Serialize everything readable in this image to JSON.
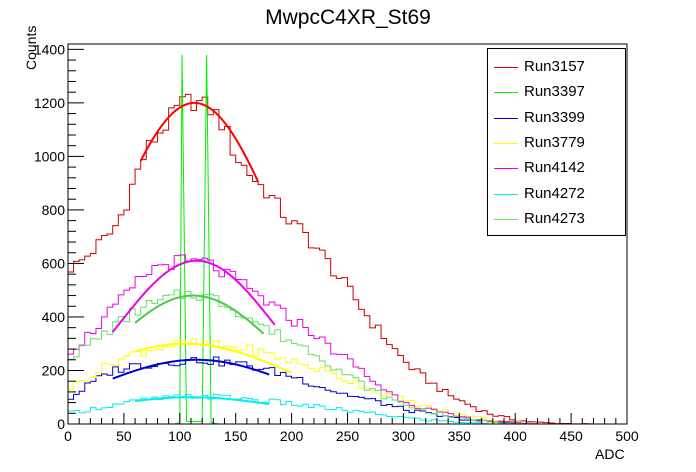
{
  "chart_data": {
    "type": "histogram",
    "title": "MwpcC4XR_St69",
    "xlabel": "ADC",
    "ylabel": "Counts",
    "xlim": [
      0,
      500
    ],
    "ylim": [
      0,
      1420
    ],
    "xticks": [
      0,
      50,
      100,
      150,
      200,
      250,
      300,
      350,
      400,
      450,
      500
    ],
    "yticks": [
      0,
      200,
      400,
      600,
      800,
      1000,
      1200,
      1400
    ],
    "bin_width": 5,
    "grid": false,
    "legend_position": "top-right",
    "series": [
      {
        "name": "Run3157",
        "color": "#cc0000",
        "fit_color": "#ff0000",
        "fit": {
          "mean": 113,
          "peak": 1200,
          "sigma": 76,
          "from": 65,
          "to": 170
        },
        "points": [
          [
            0,
            580
          ],
          [
            10,
            600
          ],
          [
            20,
            640
          ],
          [
            30,
            680
          ],
          [
            40,
            720
          ],
          [
            50,
            800
          ],
          [
            60,
            920
          ],
          [
            70,
            1020
          ],
          [
            80,
            1080
          ],
          [
            90,
            1130
          ],
          [
            100,
            1190
          ],
          [
            110,
            1210
          ],
          [
            120,
            1195
          ],
          [
            130,
            1170
          ],
          [
            140,
            1110
          ],
          [
            150,
            1000
          ],
          [
            160,
            950
          ],
          [
            170,
            900
          ],
          [
            180,
            860
          ],
          [
            190,
            800
          ],
          [
            200,
            750
          ],
          [
            210,
            720
          ],
          [
            220,
            670
          ],
          [
            230,
            620
          ],
          [
            240,
            560
          ],
          [
            250,
            510
          ],
          [
            260,
            450
          ],
          [
            270,
            390
          ],
          [
            280,
            340
          ],
          [
            290,
            290
          ],
          [
            300,
            240
          ],
          [
            310,
            200
          ],
          [
            320,
            170
          ],
          [
            330,
            140
          ],
          [
            340,
            110
          ],
          [
            350,
            90
          ],
          [
            360,
            70
          ],
          [
            370,
            50
          ],
          [
            380,
            35
          ],
          [
            390,
            25
          ],
          [
            400,
            15
          ],
          [
            410,
            10
          ],
          [
            420,
            6
          ],
          [
            440,
            2
          ],
          [
            470,
            0
          ]
        ]
      },
      {
        "name": "Run3397",
        "color": "#00ee00",
        "fit_color": "#00ee00",
        "points": [
          [
            0,
            0
          ],
          [
            95,
            0
          ],
          [
            100,
            5
          ],
          [
            102,
            1380
          ],
          [
            106,
            10
          ],
          [
            120,
            10
          ],
          [
            124,
            1380
          ],
          [
            128,
            5
          ],
          [
            135,
            0
          ],
          [
            500,
            0
          ]
        ]
      },
      {
        "name": "Run3399",
        "color": "#0000cc",
        "fit_color": "#0000cc",
        "fit": {
          "mean": 115,
          "peak": 240,
          "sigma": 90,
          "from": 40,
          "to": 180
        },
        "points": [
          [
            0,
            90
          ],
          [
            20,
            150
          ],
          [
            40,
            200
          ],
          [
            60,
            220
          ],
          [
            80,
            225
          ],
          [
            100,
            235
          ],
          [
            120,
            240
          ],
          [
            140,
            230
          ],
          [
            160,
            220
          ],
          [
            180,
            200
          ],
          [
            200,
            180
          ],
          [
            220,
            150
          ],
          [
            240,
            120
          ],
          [
            260,
            100
          ],
          [
            280,
            80
          ],
          [
            300,
            55
          ],
          [
            320,
            40
          ],
          [
            340,
            25
          ],
          [
            360,
            15
          ],
          [
            380,
            8
          ],
          [
            400,
            4
          ],
          [
            420,
            0
          ]
        ]
      },
      {
        "name": "Run3779",
        "color": "#ffff00",
        "fit_color": "#ffff00",
        "fit": {
          "mean": 105,
          "peak": 300,
          "sigma": 100,
          "from": 60,
          "to": 200
        },
        "points": [
          [
            0,
            130
          ],
          [
            20,
            180
          ],
          [
            40,
            230
          ],
          [
            60,
            265
          ],
          [
            80,
            285
          ],
          [
            100,
            300
          ],
          [
            120,
            300
          ],
          [
            140,
            290
          ],
          [
            160,
            280
          ],
          [
            180,
            260
          ],
          [
            200,
            235
          ],
          [
            220,
            210
          ],
          [
            240,
            180
          ],
          [
            260,
            150
          ],
          [
            280,
            120
          ],
          [
            300,
            90
          ],
          [
            320,
            65
          ],
          [
            340,
            45
          ],
          [
            360,
            30
          ],
          [
            380,
            15
          ],
          [
            400,
            8
          ],
          [
            420,
            0
          ]
        ]
      },
      {
        "name": "Run4142",
        "color": "#ee00ee",
        "fit_color": "#ee00ee",
        "fit": {
          "mean": 115,
          "peak": 610,
          "sigma": 70,
          "from": 40,
          "to": 185
        },
        "points": [
          [
            0,
            270
          ],
          [
            10,
            300
          ],
          [
            20,
            340
          ],
          [
            30,
            380
          ],
          [
            40,
            430
          ],
          [
            50,
            470
          ],
          [
            60,
            520
          ],
          [
            70,
            560
          ],
          [
            80,
            590
          ],
          [
            90,
            600
          ],
          [
            100,
            610
          ],
          [
            110,
            600
          ],
          [
            120,
            610
          ],
          [
            130,
            590
          ],
          [
            140,
            560
          ],
          [
            150,
            540
          ],
          [
            160,
            510
          ],
          [
            170,
            480
          ],
          [
            180,
            450
          ],
          [
            190,
            420
          ],
          [
            200,
            390
          ],
          [
            210,
            370
          ],
          [
            220,
            340
          ],
          [
            230,
            300
          ],
          [
            240,
            270
          ],
          [
            250,
            240
          ],
          [
            260,
            210
          ],
          [
            270,
            170
          ],
          [
            280,
            140
          ],
          [
            290,
            110
          ],
          [
            300,
            90
          ],
          [
            310,
            70
          ],
          [
            320,
            60
          ],
          [
            330,
            45
          ],
          [
            340,
            35
          ],
          [
            360,
            20
          ],
          [
            380,
            10
          ],
          [
            400,
            5
          ],
          [
            420,
            0
          ]
        ]
      },
      {
        "name": "Run4272",
        "color": "#00eeee",
        "fit_color": "#00eeee",
        "fit": {
          "mean": 110,
          "peak": 100,
          "sigma": 90,
          "from": 60,
          "to": 180
        },
        "points": [
          [
            0,
            40
          ],
          [
            20,
            55
          ],
          [
            40,
            70
          ],
          [
            60,
            85
          ],
          [
            80,
            95
          ],
          [
            100,
            100
          ],
          [
            120,
            105
          ],
          [
            140,
            100
          ],
          [
            160,
            95
          ],
          [
            180,
            85
          ],
          [
            200,
            75
          ],
          [
            220,
            65
          ],
          [
            240,
            55
          ],
          [
            260,
            45
          ],
          [
            280,
            35
          ],
          [
            300,
            25
          ],
          [
            320,
            15
          ],
          [
            340,
            10
          ],
          [
            360,
            5
          ],
          [
            380,
            0
          ]
        ]
      },
      {
        "name": "Run4273",
        "color": "#66dd66",
        "fit_color": "#44cc44",
        "fit": {
          "mean": 112,
          "peak": 480,
          "sigma": 75,
          "from": 60,
          "to": 175
        },
        "points": [
          [
            0,
            250
          ],
          [
            10,
            270
          ],
          [
            20,
            300
          ],
          [
            30,
            330
          ],
          [
            40,
            360
          ],
          [
            50,
            390
          ],
          [
            60,
            420
          ],
          [
            70,
            440
          ],
          [
            80,
            450
          ],
          [
            90,
            470
          ],
          [
            100,
            480
          ],
          [
            110,
            490
          ],
          [
            120,
            480
          ],
          [
            130,
            470
          ],
          [
            140,
            450
          ],
          [
            150,
            430
          ],
          [
            160,
            400
          ],
          [
            170,
            380
          ],
          [
            180,
            350
          ],
          [
            190,
            330
          ],
          [
            200,
            310
          ],
          [
            210,
            290
          ],
          [
            220,
            270
          ],
          [
            230,
            240
          ],
          [
            240,
            210
          ],
          [
            250,
            180
          ],
          [
            260,
            160
          ],
          [
            270,
            130
          ],
          [
            280,
            110
          ],
          [
            290,
            90
          ],
          [
            300,
            75
          ],
          [
            310,
            60
          ],
          [
            320,
            50
          ],
          [
            330,
            40
          ],
          [
            340,
            30
          ],
          [
            360,
            15
          ],
          [
            380,
            8
          ],
          [
            400,
            3
          ],
          [
            420,
            0
          ]
        ]
      }
    ]
  }
}
